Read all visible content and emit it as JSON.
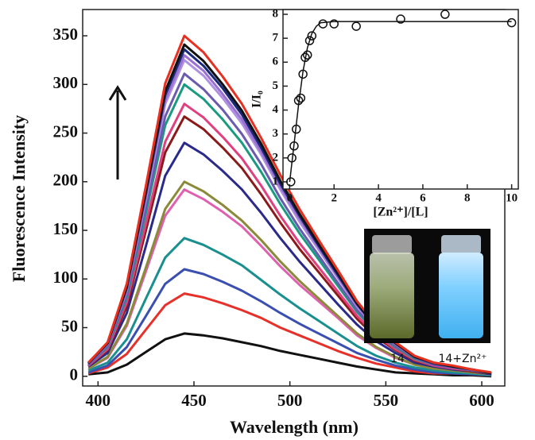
{
  "chart_data": [
    {
      "type": "line",
      "x_label": "Wavelength (nm)",
      "y_label": "Fluorescence Intensity",
      "x": [
        395,
        405,
        415,
        425,
        435,
        445,
        455,
        465,
        475,
        485,
        495,
        505,
        515,
        525,
        535,
        545,
        555,
        565,
        575,
        585,
        595,
        605
      ],
      "xlim": [
        392,
        612
      ],
      "ylim": [
        -10,
        377
      ],
      "xticks": [
        400,
        450,
        500,
        550,
        600
      ],
      "yticks": [
        0,
        50,
        100,
        150,
        200,
        250,
        300,
        350
      ],
      "grid": false,
      "series": [
        {
          "color": "#111111",
          "values": [
            2,
            4,
            12,
            25,
            38,
            44,
            42,
            39,
            35,
            31,
            26,
            22,
            18,
            14,
            10,
            7,
            4,
            3,
            2,
            1,
            1,
            0
          ]
        },
        {
          "color": "#e8302a",
          "values": [
            3,
            9,
            23,
            48,
            73,
            85,
            81,
            75,
            68,
            60,
            50,
            42,
            34,
            26,
            19,
            13,
            9,
            5,
            3,
            3,
            2,
            1
          ]
        },
        {
          "color": "#3a4fb0",
          "values": [
            4,
            11,
            30,
            62,
            95,
            110,
            105,
            97,
            88,
            77,
            65,
            54,
            44,
            34,
            24,
            17,
            11,
            7,
            4,
            3,
            2,
            1
          ]
        },
        {
          "color": "#1a8f8f",
          "values": [
            6,
            14,
            38,
            80,
            122,
            142,
            135,
            125,
            114,
            99,
            84,
            70,
            57,
            44,
            31,
            21,
            14,
            9,
            6,
            4,
            3,
            1
          ]
        },
        {
          "color": "#e060b0",
          "values": [
            8,
            19,
            52,
            108,
            165,
            192,
            182,
            169,
            154,
            134,
            113,
            94,
            77,
            60,
            42,
            29,
            19,
            12,
            8,
            6,
            4,
            2
          ]
        },
        {
          "color": "#8a8a3a",
          "values": [
            8,
            20,
            54,
            112,
            172,
            200,
            190,
            176,
            160,
            140,
            118,
            98,
            80,
            62,
            44,
            30,
            20,
            12,
            8,
            6,
            4,
            2
          ]
        },
        {
          "color": "#2a2a8a",
          "values": [
            10,
            24,
            65,
            134,
            206,
            240,
            228,
            211,
            192,
            168,
            142,
            118,
            96,
            74,
            53,
            36,
            24,
            14,
            10,
            7,
            5,
            2
          ]
        },
        {
          "color": "#8b1a1a",
          "values": [
            11,
            27,
            72,
            150,
            230,
            267,
            254,
            235,
            214,
            187,
            158,
            131,
            107,
            83,
            59,
            40,
            27,
            16,
            11,
            8,
            5,
            3
          ]
        },
        {
          "color": "#e04080",
          "values": [
            11,
            28,
            76,
            157,
            241,
            280,
            266,
            246,
            224,
            196,
            165,
            137,
            112,
            87,
            62,
            42,
            28,
            17,
            11,
            8,
            6,
            3
          ]
        },
        {
          "color": "#1a9a80",
          "values": [
            12,
            30,
            81,
            168,
            258,
            300,
            285,
            264,
            240,
            210,
            177,
            147,
            120,
            93,
            66,
            45,
            30,
            18,
            12,
            9,
            6,
            3
          ]
        },
        {
          "color": "#6a5ab0",
          "values": [
            12,
            31,
            84,
            174,
            267,
            311,
            295,
            274,
            249,
            218,
            183,
            152,
            124,
            96,
            68,
            47,
            31,
            19,
            12,
            9,
            6,
            3
          ]
        },
        {
          "color": "#b090e0",
          "values": [
            13,
            33,
            88,
            182,
            280,
            325,
            309,
            286,
            260,
            228,
            192,
            159,
            130,
            101,
            72,
            49,
            33,
            20,
            13,
            10,
            7,
            3
          ]
        },
        {
          "color": "#9a70d0",
          "values": [
            13,
            33,
            89,
            185,
            284,
            330,
            314,
            290,
            264,
            231,
            195,
            162,
            132,
            102,
            73,
            50,
            33,
            20,
            13,
            10,
            7,
            3
          ]
        },
        {
          "color": "#1a2a7a",
          "values": [
            13,
            34,
            91,
            188,
            289,
            336,
            319,
            296,
            269,
            235,
            198,
            165,
            134,
            104,
            74,
            50,
            34,
            20,
            13,
            10,
            7,
            3
          ]
        },
        {
          "color": "#111111",
          "values": [
            14,
            34,
            92,
            191,
            293,
            341,
            324,
            300,
            273,
            239,
            201,
            167,
            136,
            106,
            75,
            51,
            34,
            20,
            14,
            10,
            7,
            3
          ]
        },
        {
          "color": "#e83020",
          "values": [
            14,
            35,
            95,
            196,
            301,
            350,
            333,
            308,
            280,
            245,
            207,
            172,
            140,
            109,
            77,
            53,
            35,
            21,
            14,
            11,
            7,
            4
          ]
        }
      ]
    },
    {
      "type": "scatter",
      "x_label": "[Zn²⁺]/[L]",
      "y_label": "I/I₀",
      "x": [
        0.05,
        0.1,
        0.2,
        0.3,
        0.4,
        0.5,
        0.6,
        0.7,
        0.8,
        0.9,
        1.0,
        1.5,
        2,
        3,
        5,
        7,
        10
      ],
      "values": [
        1.0,
        2.0,
        2.5,
        3.2,
        4.4,
        4.5,
        5.5,
        6.2,
        6.3,
        6.9,
        7.1,
        7.6,
        7.6,
        7.5,
        7.8,
        8.0,
        7.65
      ],
      "fit": {
        "x": [
          0,
          0.2,
          0.4,
          0.6,
          0.8,
          1.0,
          1.2,
          1.4,
          2,
          10
        ],
        "y": [
          1,
          2.6,
          4.2,
          5.6,
          6.6,
          7.2,
          7.5,
          7.65,
          7.7,
          7.7
        ]
      },
      "xlim": [
        -0.3,
        10.3
      ],
      "ylim": [
        0.7,
        8.2
      ],
      "xticks": [
        0,
        2,
        4,
        6,
        8,
        10
      ],
      "yticks": [
        1,
        2,
        3,
        4,
        5,
        6,
        7,
        8
      ]
    }
  ],
  "photo": {
    "labels": [
      "14",
      "14+Zn²⁺"
    ]
  }
}
